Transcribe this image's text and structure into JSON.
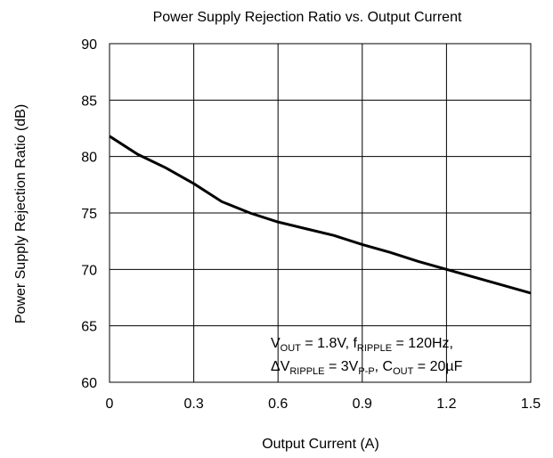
{
  "chart_data": {
    "type": "line",
    "title": "Power Supply Rejection Ratio vs. Output Current",
    "xlabel": "Output Current (A)",
    "ylabel": "Power Supply Rejection Ratio (dB)",
    "x": [
      0,
      0.1,
      0.2,
      0.3,
      0.4,
      0.5,
      0.6,
      0.7,
      0.8,
      0.9,
      1.0,
      1.1,
      1.2,
      1.3,
      1.4,
      1.5
    ],
    "values": [
      81.8,
      80.2,
      79.0,
      77.6,
      76.0,
      75.0,
      74.2,
      73.6,
      73.0,
      72.2,
      71.5,
      70.7,
      70.0,
      69.3,
      68.6,
      67.9
    ],
    "color": "#000000",
    "xlim": [
      0,
      1.5
    ],
    "xticks": [
      0,
      0.3,
      0.6,
      0.9,
      1.2,
      1.5
    ],
    "ylim": [
      60,
      90
    ],
    "yticks": [
      60,
      65,
      70,
      75,
      80,
      85,
      90
    ],
    "grid": true,
    "annotation": [
      [
        {
          "text": "V"
        },
        {
          "sub": "OUT"
        },
        {
          "text": " = 1.8V, f"
        },
        {
          "sub": "RIPPLE"
        },
        {
          "text": " = 120Hz,"
        }
      ],
      [
        {
          "text": "ΔV"
        },
        {
          "sub": "RIPPLE"
        },
        {
          "text": " = 3V"
        },
        {
          "sub": "P-P"
        },
        {
          "text": ", C"
        },
        {
          "sub": "OUT"
        },
        {
          "text": " = 20µF"
        }
      ]
    ]
  }
}
